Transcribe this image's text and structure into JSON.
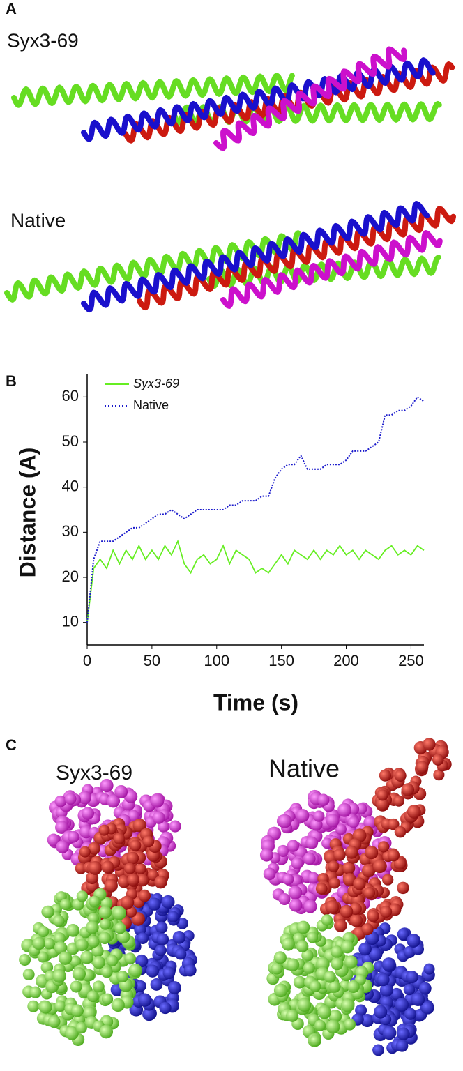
{
  "figure": {
    "panel_a": {
      "label": "A",
      "top": "Syx3-69",
      "bottom": "Native"
    },
    "panel_b": {
      "label": "B"
    },
    "panel_c": {
      "label": "C",
      "left": "Syx3-69",
      "right": "Native"
    }
  },
  "chart_data": {
    "type": "line",
    "x_label": "Time (s)",
    "y_label": "Distance (A)",
    "x": [
      0,
      5,
      10,
      15,
      20,
      25,
      30,
      35,
      40,
      45,
      50,
      55,
      60,
      65,
      70,
      75,
      80,
      85,
      90,
      95,
      100,
      105,
      110,
      115,
      120,
      125,
      130,
      135,
      140,
      145,
      150,
      155,
      160,
      165,
      170,
      175,
      180,
      185,
      190,
      195,
      200,
      205,
      210,
      215,
      220,
      225,
      230,
      235,
      240,
      245,
      250,
      255,
      260
    ],
    "series": [
      {
        "name": "Syx3-69",
        "color": "#66ee22",
        "style": "solid",
        "values": [
          10,
          22,
          24,
          22,
          26,
          23,
          26,
          24,
          27,
          24,
          26,
          24,
          27,
          25,
          28,
          23,
          21,
          24,
          25,
          23,
          24,
          27,
          23,
          26,
          25,
          24,
          21,
          22,
          21,
          23,
          25,
          23,
          26,
          25,
          24,
          26,
          24,
          26,
          25,
          27,
          25,
          26,
          24,
          26,
          25,
          24,
          26,
          27,
          25,
          26,
          25,
          27,
          26
        ]
      },
      {
        "name": "Native",
        "color": "#1a1acc",
        "style": "dotted",
        "values": [
          10,
          24,
          28,
          28,
          28,
          29,
          30,
          31,
          31,
          32,
          33,
          34,
          34,
          35,
          34,
          33,
          34,
          35,
          35,
          35,
          35,
          35,
          36,
          36,
          37,
          37,
          37,
          38,
          38,
          42,
          44,
          45,
          45,
          47,
          44,
          44,
          44,
          45,
          45,
          45,
          46,
          48,
          48,
          48,
          49,
          50,
          56,
          56,
          57,
          57,
          58,
          60,
          59
        ]
      }
    ],
    "xlim": [
      0,
      260
    ],
    "xticks": [
      0,
      50,
      100,
      150,
      200,
      250
    ],
    "ylim": [
      5,
      65
    ],
    "yticks": [
      10,
      20,
      30,
      40,
      50,
      60
    ],
    "legend": "upper-left",
    "grid": false
  }
}
